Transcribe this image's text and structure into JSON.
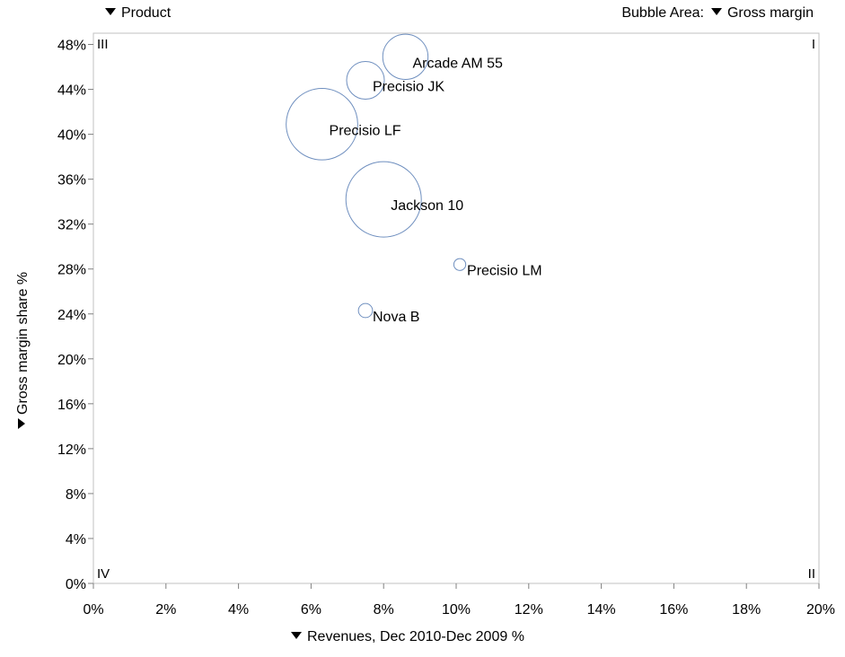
{
  "controls": {
    "product_label": "Product",
    "bubble_area_label": "Bubble Area:",
    "bubble_area_value": "Gross margin"
  },
  "chart_data": {
    "type": "scatter",
    "subtype": "bubble",
    "xlabel": "Revenues, Dec 2010-Dec 2009 %",
    "ylabel": "Gross margin share %",
    "xlim": [
      0,
      20
    ],
    "ylim": [
      0,
      49
    ],
    "x_ticks": [
      "0%",
      "2%",
      "4%",
      "6%",
      "8%",
      "10%",
      "12%",
      "14%",
      "16%",
      "18%",
      "20%"
    ],
    "y_ticks": [
      "0%",
      "4%",
      "8%",
      "12%",
      "16%",
      "20%",
      "24%",
      "28%",
      "32%",
      "36%",
      "40%",
      "44%",
      "48%"
    ],
    "grid": false,
    "bubble_color": "#6f8fbf",
    "quadrants": {
      "top_left": "III",
      "top_right": "I",
      "bottom_left": "IV",
      "bottom_right": "II"
    },
    "points": [
      {
        "label": "Arcade AM 55",
        "x": 8.6,
        "y": 46.9,
        "size": 0.36
      },
      {
        "label": "Precisio JK",
        "x": 7.5,
        "y": 44.8,
        "size": 0.25
      },
      {
        "label": "Precisio LF",
        "x": 6.3,
        "y": 40.9,
        "size": 0.9
      },
      {
        "label": "Jackson 10",
        "x": 8.0,
        "y": 34.2,
        "size": 1.0
      },
      {
        "label": "Precisio LM",
        "x": 10.1,
        "y": 28.4,
        "size": 0.025
      },
      {
        "label": "Nova B",
        "x": 7.5,
        "y": 24.3,
        "size": 0.035
      }
    ]
  }
}
